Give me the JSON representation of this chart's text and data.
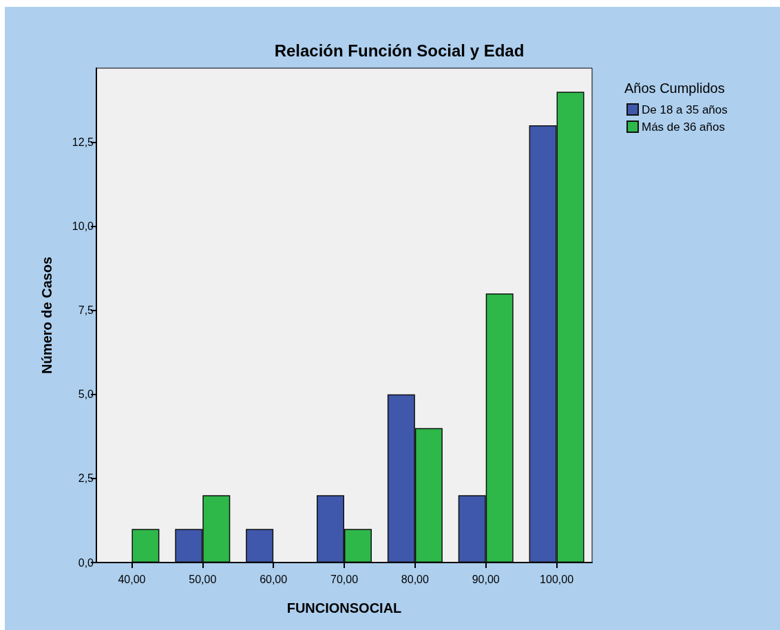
{
  "chart_data": {
    "type": "bar",
    "title": "Relación Función Social y Edad",
    "xlabel": "FUNCIONSOCIAL",
    "ylabel": "Número de Casos",
    "legend_title": "Años Cumplidos",
    "categories": [
      "40,00",
      "50,00",
      "60,00",
      "70,00",
      "80,00",
      "90,00",
      "100,00"
    ],
    "series": [
      {
        "name": "De 18 a 35 años",
        "color": "#3f58ac",
        "values": [
          null,
          1,
          1,
          2,
          5,
          2,
          13
        ]
      },
      {
        "name": "Más de 36 años",
        "color": "#2eb84a",
        "values": [
          1,
          2,
          null,
          1,
          4,
          8,
          14
        ]
      }
    ],
    "ylim": [
      0,
      14.7
    ],
    "yticks": [
      {
        "value": 0,
        "label": "0,0"
      },
      {
        "value": 2.5,
        "label": "2,5"
      },
      {
        "value": 5,
        "label": "5,0"
      },
      {
        "value": 7.5,
        "label": "7,5"
      },
      {
        "value": 10,
        "label": "10,0"
      },
      {
        "value": 12.5,
        "label": "12,5"
      }
    ],
    "grid": false,
    "legend": "top right"
  }
}
